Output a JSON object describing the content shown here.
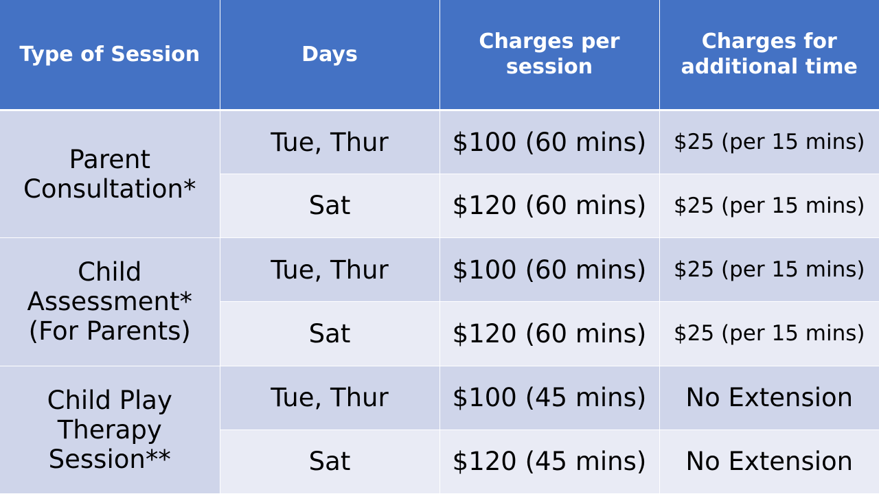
{
  "headers": [
    "Type of Session",
    "Days",
    "Charges per session",
    "Charges for additional time"
  ],
  "sessions": [
    {
      "type": "Parent Consultation*",
      "rows": [
        {
          "days": "Tue, Thur",
          "charge": "$100 (60 mins)",
          "additional": "$25 (per 15 mins)"
        },
        {
          "days": "Sat",
          "charge": "$120 (60 mins)",
          "additional": "$25 (per 15 mins)"
        }
      ]
    },
    {
      "type": "Child Assessment* (For Parents)",
      "rows": [
        {
          "days": "Tue, Thur",
          "charge": "$100 (60 mins)",
          "additional": "$25 (per 15 mins)"
        },
        {
          "days": "Sat",
          "charge": "$120 (60 mins)",
          "additional": "$25 (per 15 mins)"
        }
      ]
    },
    {
      "type": "Child Play Therapy Session**",
      "rows": [
        {
          "days": "Tue, Thur",
          "charge": "$100 (45 mins)",
          "additional": "No Extension"
        },
        {
          "days": "Sat",
          "charge": "$120 (45 mins)",
          "additional": "No Extension"
        }
      ]
    }
  ],
  "colors": {
    "header_bg": "#4472c4",
    "row_dark": "#cfd5ea",
    "row_light": "#e9ebf5"
  }
}
